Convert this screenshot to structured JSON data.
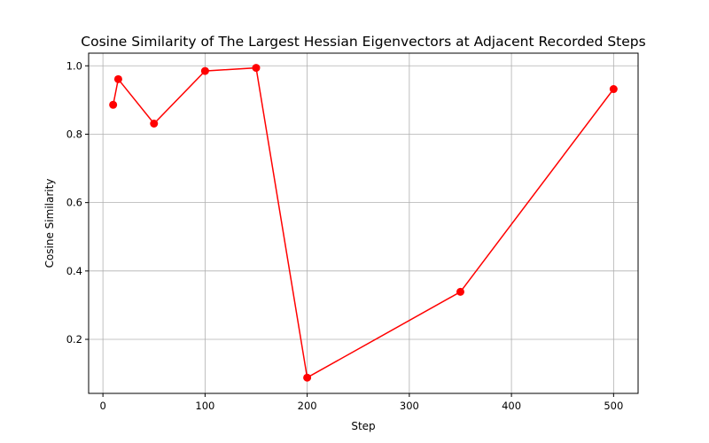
{
  "chart_data": {
    "type": "line",
    "title": "Cosine Similarity of The Largest Hessian Eigenvectors at Adjacent Recorded Steps",
    "xlabel": "Step",
    "ylabel": "Cosine Similarity",
    "xlim": [
      -14,
      524
    ],
    "ylim": [
      0.042,
      1.037
    ],
    "xticks": [
      0,
      100,
      200,
      300,
      400,
      500
    ],
    "yticks": [
      0.2,
      0.4,
      0.6,
      0.8,
      1.0
    ],
    "xtick_labels": [
      "0",
      "100",
      "200",
      "300",
      "400",
      "500"
    ],
    "ytick_labels": [
      "0.2",
      "0.4",
      "0.6",
      "0.8",
      "1.0"
    ],
    "grid": true,
    "series": [
      {
        "color": "#ff0000",
        "marker": "circle",
        "x": [
          10,
          15,
          50,
          100,
          150,
          200,
          350,
          500
        ],
        "y": [
          0.886,
          0.961,
          0.831,
          0.985,
          0.994,
          0.088,
          0.339,
          0.932
        ]
      }
    ]
  }
}
